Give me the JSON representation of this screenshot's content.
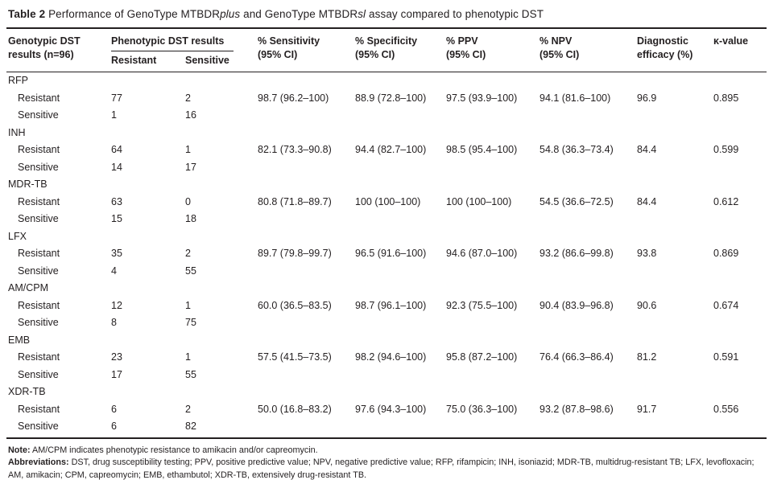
{
  "page": {
    "title": {
      "prefix": "Table 2",
      "part1": " Performance of GenoType MTBDR",
      "italic1": "plus",
      "part2": " and GenoType MTBDR",
      "italic2": "sl",
      "part3": " assay compared to phenotypic DST"
    }
  },
  "table": {
    "header": {
      "col1_line1": "Genotypic DST",
      "col1_line2": "results (n=96)",
      "group": "Phenotypic DST results",
      "sub_resistant": "Resistant",
      "sub_sensitive": "Sensitive",
      "sensitivity_line1": "% Sensitivity",
      "sensitivity_line2": "(95% CI)",
      "specificity_line1": "% Specificity",
      "specificity_line2": "(95% CI)",
      "ppv_line1": "% PPV",
      "ppv_line2": "(95% CI)",
      "npv_line1": "% NPV",
      "npv_line2": "(95% CI)",
      "efficacy_line1": "Diagnostic",
      "efficacy_line2": "efficacy (%)",
      "kappa": "κ-value"
    },
    "groups": [
      {
        "name": "RFP",
        "resistant": {
          "label": "Resistant",
          "res": "77",
          "sen": "2",
          "sensitivity": "98.7 (96.2–100)",
          "specificity": "88.9 (72.8–100)",
          "ppv": "97.5 (93.9–100)",
          "npv": "94.1 (81.6–100)",
          "efficacy": "96.9",
          "kappa": "0.895"
        },
        "sensitive": {
          "label": "Sensitive",
          "res": "1",
          "sen": "16"
        }
      },
      {
        "name": "INH",
        "resistant": {
          "label": "Resistant",
          "res": "64",
          "sen": "1",
          "sensitivity": "82.1 (73.3–90.8)",
          "specificity": "94.4 (82.7–100)",
          "ppv": "98.5 (95.4–100)",
          "npv": "54.8 (36.3–73.4)",
          "efficacy": "84.4",
          "kappa": "0.599"
        },
        "sensitive": {
          "label": "Sensitive",
          "res": "14",
          "sen": "17"
        }
      },
      {
        "name": "MDR-TB",
        "resistant": {
          "label": "Resistant",
          "res": "63",
          "sen": "0",
          "sensitivity": "80.8 (71.8–89.7)",
          "specificity": "100 (100–100)",
          "ppv": "100 (100–100)",
          "npv": "54.5 (36.6–72.5)",
          "efficacy": "84.4",
          "kappa": "0.612"
        },
        "sensitive": {
          "label": "Sensitive",
          "res": "15",
          "sen": "18"
        }
      },
      {
        "name": "LFX",
        "resistant": {
          "label": "Resistant",
          "res": "35",
          "sen": "2",
          "sensitivity": "89.7 (79.8–99.7)",
          "specificity": "96.5 (91.6–100)",
          "ppv": "94.6 (87.0–100)",
          "npv": "93.2 (86.6–99.8)",
          "efficacy": "93.8",
          "kappa": "0.869"
        },
        "sensitive": {
          "label": "Sensitive",
          "res": "4",
          "sen": "55"
        }
      },
      {
        "name": "AM/CPM",
        "resistant": {
          "label": "Resistant",
          "res": "12",
          "sen": "1",
          "sensitivity": "60.0 (36.5–83.5)",
          "specificity": "98.7 (96.1–100)",
          "ppv": "92.3 (75.5–100)",
          "npv": "90.4 (83.9–96.8)",
          "efficacy": "90.6",
          "kappa": "0.674"
        },
        "sensitive": {
          "label": "Sensitive",
          "res": "8",
          "sen": "75"
        }
      },
      {
        "name": "EMB",
        "resistant": {
          "label": "Resistant",
          "res": "23",
          "sen": "1",
          "sensitivity": "57.5 (41.5–73.5)",
          "specificity": "98.2 (94.6–100)",
          "ppv": "95.8 (87.2–100)",
          "npv": "76.4 (66.3–86.4)",
          "efficacy": "81.2",
          "kappa": "0.591"
        },
        "sensitive": {
          "label": "Sensitive",
          "res": "17",
          "sen": "55"
        }
      },
      {
        "name": "XDR-TB",
        "resistant": {
          "label": "Resistant",
          "res": "6",
          "sen": "2",
          "sensitivity": "50.0 (16.8–83.2)",
          "specificity": "97.6 (94.3–100)",
          "ppv": "75.0 (36.3–100)",
          "npv": "93.2 (87.8–98.6)",
          "efficacy": "91.7",
          "kappa": "0.556"
        },
        "sensitive": {
          "label": "Sensitive",
          "res": "6",
          "sen": "82"
        }
      }
    ]
  },
  "footer": {
    "note_label": "Note:",
    "note_text": " AM/CPM indicates phenotypic resistance to amikacin and/or capreomycin.",
    "abbr_label": "Abbreviations:",
    "abbr_text": " DST, drug susceptibility testing; PPV, positive predictive value; NPV, negative predictive value; RFP, rifampicin; INH, isoniazid; MDR-TB, multidrug-resistant TB; LFX, levofloxacin; AM, amikacin; CPM, capreomycin; EMB, ethambutol; XDR-TB, extensively drug-resistant TB."
  }
}
